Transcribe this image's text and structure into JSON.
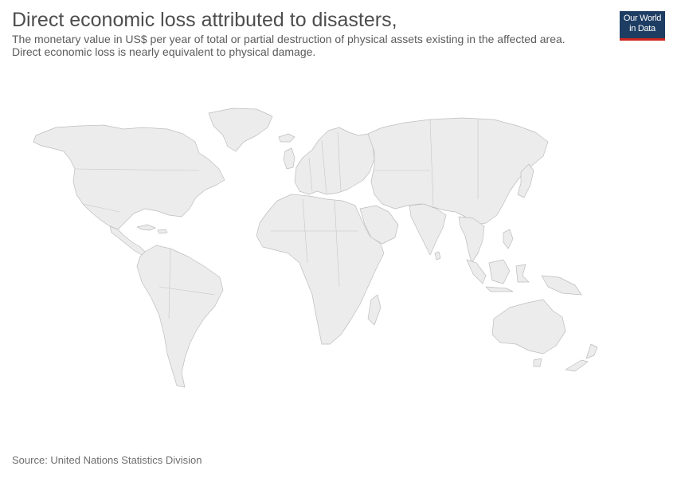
{
  "header": {
    "title": "Direct economic loss attributed to disasters,",
    "subtitle_lines": [
      "The monetary value in US$ per year of total or partial destruction of physical assets existing in the affected area.",
      "Direct economic loss is nearly equivalent to physical damage."
    ]
  },
  "logo": {
    "lines": [
      "Our World",
      "in Data"
    ],
    "colors": {
      "background": "#1d3d63",
      "accent": "#ce261e"
    }
  },
  "map": {
    "fill_color": "#ececec",
    "border_color": "#bdbdbd",
    "regions": [
      "North America",
      "Greenland",
      "Central America",
      "Caribbean",
      "South America",
      "Europe",
      "Iceland",
      "United Kingdom",
      "Africa",
      "Madagascar",
      "Asia",
      "Arabian Peninsula",
      "India",
      "Sri Lanka",
      "Japan",
      "Southeast Asia",
      "Indonesia",
      "Philippines",
      "New Guinea",
      "Australia",
      "New Zealand"
    ]
  },
  "footer": {
    "source": "Source: United Nations Statistics Division"
  }
}
